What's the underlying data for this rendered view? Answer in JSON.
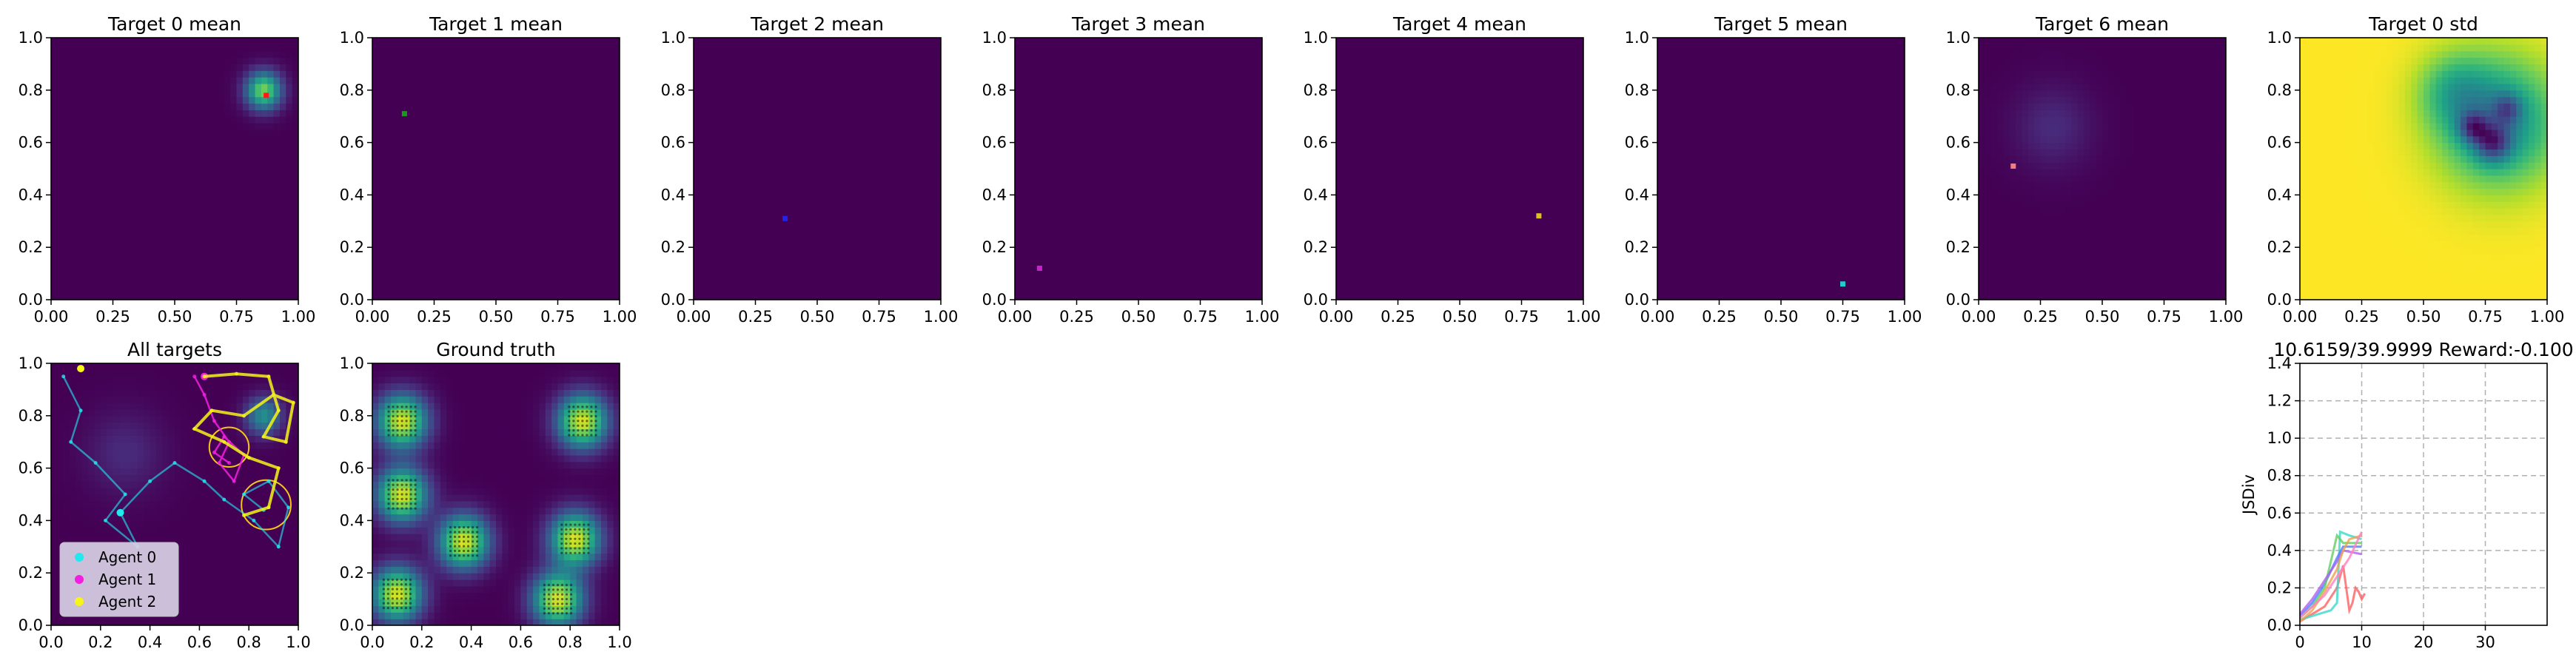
{
  "colors": {
    "viridis_low": "#440154",
    "viridis_high": "#fde725",
    "agent_0": "#22e8f0",
    "agent_1": "#f21fe0",
    "agent_2": "#f5f519",
    "grid": "#b0b0b0",
    "legend_bg": "#d8d0e6"
  },
  "chart_data": [
    {
      "type": "heatmap",
      "title": "Target 0 mean",
      "xlim": [
        0,
        1
      ],
      "ylim": [
        0,
        1
      ],
      "xticks": [
        "0.00",
        "0.25",
        "0.50",
        "0.75",
        "1.00"
      ],
      "yticks": [
        "0.0",
        "0.2",
        "0.4",
        "0.6",
        "0.8",
        "1.0"
      ],
      "blobs": [
        {
          "x": 0.86,
          "y": 0.8,
          "sigma": 0.05,
          "peak": 0.8
        }
      ],
      "marker": {
        "x": 0.87,
        "y": 0.78,
        "color": "#ff1a1a"
      }
    },
    {
      "type": "heatmap",
      "title": "Target 1 mean",
      "xlim": [
        0,
        1
      ],
      "ylim": [
        0,
        1
      ],
      "xticks": [
        "0.00",
        "0.25",
        "0.50",
        "0.75",
        "1.00"
      ],
      "yticks": [
        "0.0",
        "0.2",
        "0.4",
        "0.6",
        "0.8",
        "1.0"
      ],
      "blobs": [],
      "marker": {
        "x": 0.13,
        "y": 0.71,
        "color": "#1a9a1a"
      }
    },
    {
      "type": "heatmap",
      "title": "Target 2 mean",
      "xlim": [
        0,
        1
      ],
      "ylim": [
        0,
        1
      ],
      "xticks": [
        "0.00",
        "0.25",
        "0.50",
        "0.75",
        "1.00"
      ],
      "yticks": [
        "0.0",
        "0.2",
        "0.4",
        "0.6",
        "0.8",
        "1.0"
      ],
      "blobs": [],
      "marker": {
        "x": 0.37,
        "y": 0.31,
        "color": "#2222ee"
      }
    },
    {
      "type": "heatmap",
      "title": "Target 3 mean",
      "xlim": [
        0,
        1
      ],
      "ylim": [
        0,
        1
      ],
      "xticks": [
        "0.00",
        "0.25",
        "0.50",
        "0.75",
        "1.00"
      ],
      "yticks": [
        "0.0",
        "0.2",
        "0.4",
        "0.6",
        "0.8",
        "1.0"
      ],
      "blobs": [],
      "marker": {
        "x": 0.1,
        "y": 0.12,
        "color": "#cc22cc"
      }
    },
    {
      "type": "heatmap",
      "title": "Target 4 mean",
      "xlim": [
        0,
        1
      ],
      "ylim": [
        0,
        1
      ],
      "xticks": [
        "0.00",
        "0.25",
        "0.50",
        "0.75",
        "1.00"
      ],
      "yticks": [
        "0.0",
        "0.2",
        "0.4",
        "0.6",
        "0.8",
        "1.0"
      ],
      "blobs": [],
      "marker": {
        "x": 0.82,
        "y": 0.32,
        "color": "#e0c020"
      }
    },
    {
      "type": "heatmap",
      "title": "Target 5 mean",
      "xlim": [
        0,
        1
      ],
      "ylim": [
        0,
        1
      ],
      "xticks": [
        "0.00",
        "0.25",
        "0.50",
        "0.75",
        "1.00"
      ],
      "yticks": [
        "0.0",
        "0.2",
        "0.4",
        "0.6",
        "0.8",
        "1.0"
      ],
      "blobs": [],
      "marker": {
        "x": 0.75,
        "y": 0.06,
        "color": "#22cccc"
      }
    },
    {
      "type": "heatmap",
      "title": "Target 6 mean",
      "xlim": [
        0,
        1
      ],
      "ylim": [
        0,
        1
      ],
      "xticks": [
        "0.00",
        "0.25",
        "0.50",
        "0.75",
        "1.00"
      ],
      "yticks": [
        "0.0",
        "0.2",
        "0.4",
        "0.6",
        "0.8",
        "1.0"
      ],
      "blobs": [
        {
          "x": 0.3,
          "y": 0.66,
          "sigma": 0.11,
          "peak": 0.12
        }
      ],
      "marker": {
        "x": 0.14,
        "y": 0.51,
        "color": "#f08080"
      }
    },
    {
      "type": "heatmap",
      "title": "Target 0 std",
      "xlim": [
        0,
        1
      ],
      "ylim": [
        0,
        1
      ],
      "xticks": [
        "0.00",
        "0.25",
        "0.50",
        "0.75",
        "1.00"
      ],
      "yticks": [
        "0.0",
        "0.2",
        "0.4",
        "0.6",
        "0.8",
        "1.0"
      ],
      "base_level": 1.0,
      "dips": [
        {
          "x": 0.8,
          "y": 0.68,
          "sigma": 0.17,
          "depth": 0.55
        },
        {
          "x": 0.7,
          "y": 0.66,
          "sigma": 0.04,
          "depth": 0.4
        },
        {
          "x": 0.78,
          "y": 0.6,
          "sigma": 0.05,
          "depth": 0.45
        },
        {
          "x": 0.84,
          "y": 0.73,
          "sigma": 0.04,
          "depth": 0.3
        },
        {
          "x": 0.62,
          "y": 0.8,
          "sigma": 0.1,
          "depth": 0.25
        }
      ]
    },
    {
      "type": "heatmap",
      "title": "All targets",
      "xlim": [
        0,
        1
      ],
      "ylim": [
        0,
        1
      ],
      "xticks": [
        "0.0",
        "0.2",
        "0.4",
        "0.6",
        "0.8",
        "1.0"
      ],
      "yticks": [
        "0.0",
        "0.2",
        "0.4",
        "0.6",
        "0.8",
        "1.0"
      ],
      "blobs": [
        {
          "x": 0.3,
          "y": 0.66,
          "sigma": 0.11,
          "peak": 0.12
        },
        {
          "x": 0.86,
          "y": 0.8,
          "sigma": 0.05,
          "peak": 0.5
        }
      ],
      "legend": {
        "placement": "lower-left",
        "entries": [
          "Agent 0",
          "Agent 1",
          "Agent 2"
        ]
      },
      "agents": [
        {
          "name": "Agent 0",
          "color": "#22e8f0",
          "position": {
            "x": 0.28,
            "y": 0.43
          },
          "path": [
            [
              0.05,
              0.95
            ],
            [
              0.12,
              0.82
            ],
            [
              0.08,
              0.7
            ],
            [
              0.18,
              0.62
            ],
            [
              0.3,
              0.5
            ],
            [
              0.22,
              0.4
            ],
            [
              0.35,
              0.3
            ],
            [
              0.28,
              0.43
            ],
            [
              0.4,
              0.55
            ],
            [
              0.5,
              0.62
            ],
            [
              0.62,
              0.55
            ],
            [
              0.7,
              0.48
            ],
            [
              0.82,
              0.4
            ],
            [
              0.92,
              0.3
            ],
            [
              0.96,
              0.45
            ],
            [
              0.88,
              0.55
            ],
            [
              0.78,
              0.5
            ],
            [
              0.86,
              0.44
            ]
          ]
        },
        {
          "name": "Agent 1",
          "color": "#f21fe0",
          "position": {
            "x": 0.62,
            "y": 0.95
          },
          "path": [
            [
              0.58,
              0.95
            ],
            [
              0.62,
              0.88
            ],
            [
              0.66,
              0.78
            ],
            [
              0.72,
              0.7
            ],
            [
              0.68,
              0.62
            ],
            [
              0.74,
              0.55
            ],
            [
              0.78,
              0.65
            ],
            [
              0.7,
              0.72
            ],
            [
              0.66,
              0.66
            ],
            [
              0.72,
              0.62
            ]
          ]
        },
        {
          "name": "Agent 2",
          "color": "#f5f519",
          "position": {
            "x": 0.12,
            "y": 0.98
          },
          "path": [
            [
              0.62,
              0.95
            ],
            [
              0.75,
              0.96
            ],
            [
              0.88,
              0.95
            ],
            [
              0.92,
              0.82
            ],
            [
              0.86,
              0.72
            ],
            [
              0.95,
              0.7
            ],
            [
              0.98,
              0.85
            ],
            [
              0.9,
              0.88
            ],
            [
              0.78,
              0.8
            ],
            [
              0.65,
              0.82
            ],
            [
              0.58,
              0.75
            ],
            [
              0.7,
              0.7
            ],
            [
              0.8,
              0.64
            ],
            [
              0.92,
              0.6
            ],
            [
              0.88,
              0.45
            ],
            [
              0.78,
              0.42
            ]
          ]
        }
      ],
      "circles": [
        {
          "x": 0.72,
          "y": 0.68,
          "r": 0.08
        },
        {
          "x": 0.87,
          "y": 0.46,
          "r": 0.1
        }
      ]
    },
    {
      "type": "heatmap",
      "title": "Ground truth",
      "xlim": [
        0,
        1
      ],
      "ylim": [
        0,
        1
      ],
      "xticks": [
        "0.0",
        "0.2",
        "0.4",
        "0.6",
        "0.8",
        "1.0"
      ],
      "yticks": [
        "0.0",
        "0.2",
        "0.4",
        "0.6",
        "0.8",
        "1.0"
      ],
      "blobs": [
        {
          "x": 0.12,
          "y": 0.78,
          "sigma": 0.07,
          "peak": 0.95
        },
        {
          "x": 0.85,
          "y": 0.78,
          "sigma": 0.07,
          "peak": 0.95
        },
        {
          "x": 0.12,
          "y": 0.5,
          "sigma": 0.07,
          "peak": 0.95
        },
        {
          "x": 0.37,
          "y": 0.32,
          "sigma": 0.07,
          "peak": 0.95
        },
        {
          "x": 0.82,
          "y": 0.33,
          "sigma": 0.07,
          "peak": 0.95
        },
        {
          "x": 0.1,
          "y": 0.12,
          "sigma": 0.07,
          "peak": 0.95
        },
        {
          "x": 0.75,
          "y": 0.1,
          "sigma": 0.07,
          "peak": 0.95
        }
      ]
    },
    {
      "type": "line",
      "title": "10.6159/39.9999 Reward:-0.100",
      "ylabel": "JSDiv",
      "xlim": [
        0,
        40
      ],
      "ylim": [
        0,
        1.4
      ],
      "xticks": [
        "0",
        "10",
        "20",
        "30"
      ],
      "yticks": [
        "0.0",
        "0.2",
        "0.4",
        "0.6",
        "0.8",
        "1.0",
        "1.2",
        "1.4"
      ],
      "grid": true,
      "series": [
        {
          "color": "#ff6060",
          "values": [
            [
              0,
              0.02
            ],
            [
              2,
              0.06
            ],
            [
              4,
              0.1
            ],
            [
              6,
              0.2
            ],
            [
              7,
              0.32
            ],
            [
              8,
              0.08
            ],
            [
              8.5,
              0.12
            ],
            [
              9,
              0.2
            ],
            [
              9.5,
              0.18
            ],
            [
              10,
              0.14
            ],
            [
              10.5,
              0.17
            ]
          ]
        },
        {
          "color": "#3ad8c8",
          "values": [
            [
              0,
              0.03
            ],
            [
              3,
              0.06
            ],
            [
              5,
              0.08
            ],
            [
              6,
              0.12
            ],
            [
              6.5,
              0.5
            ],
            [
              8,
              0.48
            ],
            [
              10,
              0.46
            ]
          ]
        },
        {
          "color": "#4c7cff",
          "values": [
            [
              0,
              0.05
            ],
            [
              2,
              0.12
            ],
            [
              4,
              0.22
            ],
            [
              6,
              0.36
            ],
            [
              7,
              0.42
            ],
            [
              10,
              0.42
            ]
          ]
        },
        {
          "color": "#60d060",
          "values": [
            [
              0,
              0.04
            ],
            [
              2,
              0.1
            ],
            [
              4,
              0.2
            ],
            [
              6,
              0.48
            ],
            [
              7,
              0.44
            ],
            [
              10,
              0.44
            ]
          ]
        },
        {
          "color": "#b060f0",
          "values": [
            [
              0,
              0.06
            ],
            [
              2,
              0.14
            ],
            [
              4,
              0.24
            ],
            [
              6,
              0.34
            ],
            [
              7,
              0.4
            ],
            [
              10,
              0.38
            ]
          ]
        },
        {
          "color": "#f0a050",
          "values": [
            [
              0,
              0.02
            ],
            [
              2,
              0.08
            ],
            [
              4,
              0.18
            ],
            [
              6,
              0.3
            ],
            [
              7,
              0.4
            ],
            [
              8,
              0.46
            ],
            [
              10,
              0.48
            ]
          ]
        },
        {
          "color": "#ff80c0",
          "values": [
            [
              0,
              0.04
            ],
            [
              2,
              0.1
            ],
            [
              4,
              0.16
            ],
            [
              6,
              0.26
            ],
            [
              8,
              0.36
            ],
            [
              10,
              0.5
            ]
          ]
        }
      ]
    }
  ]
}
